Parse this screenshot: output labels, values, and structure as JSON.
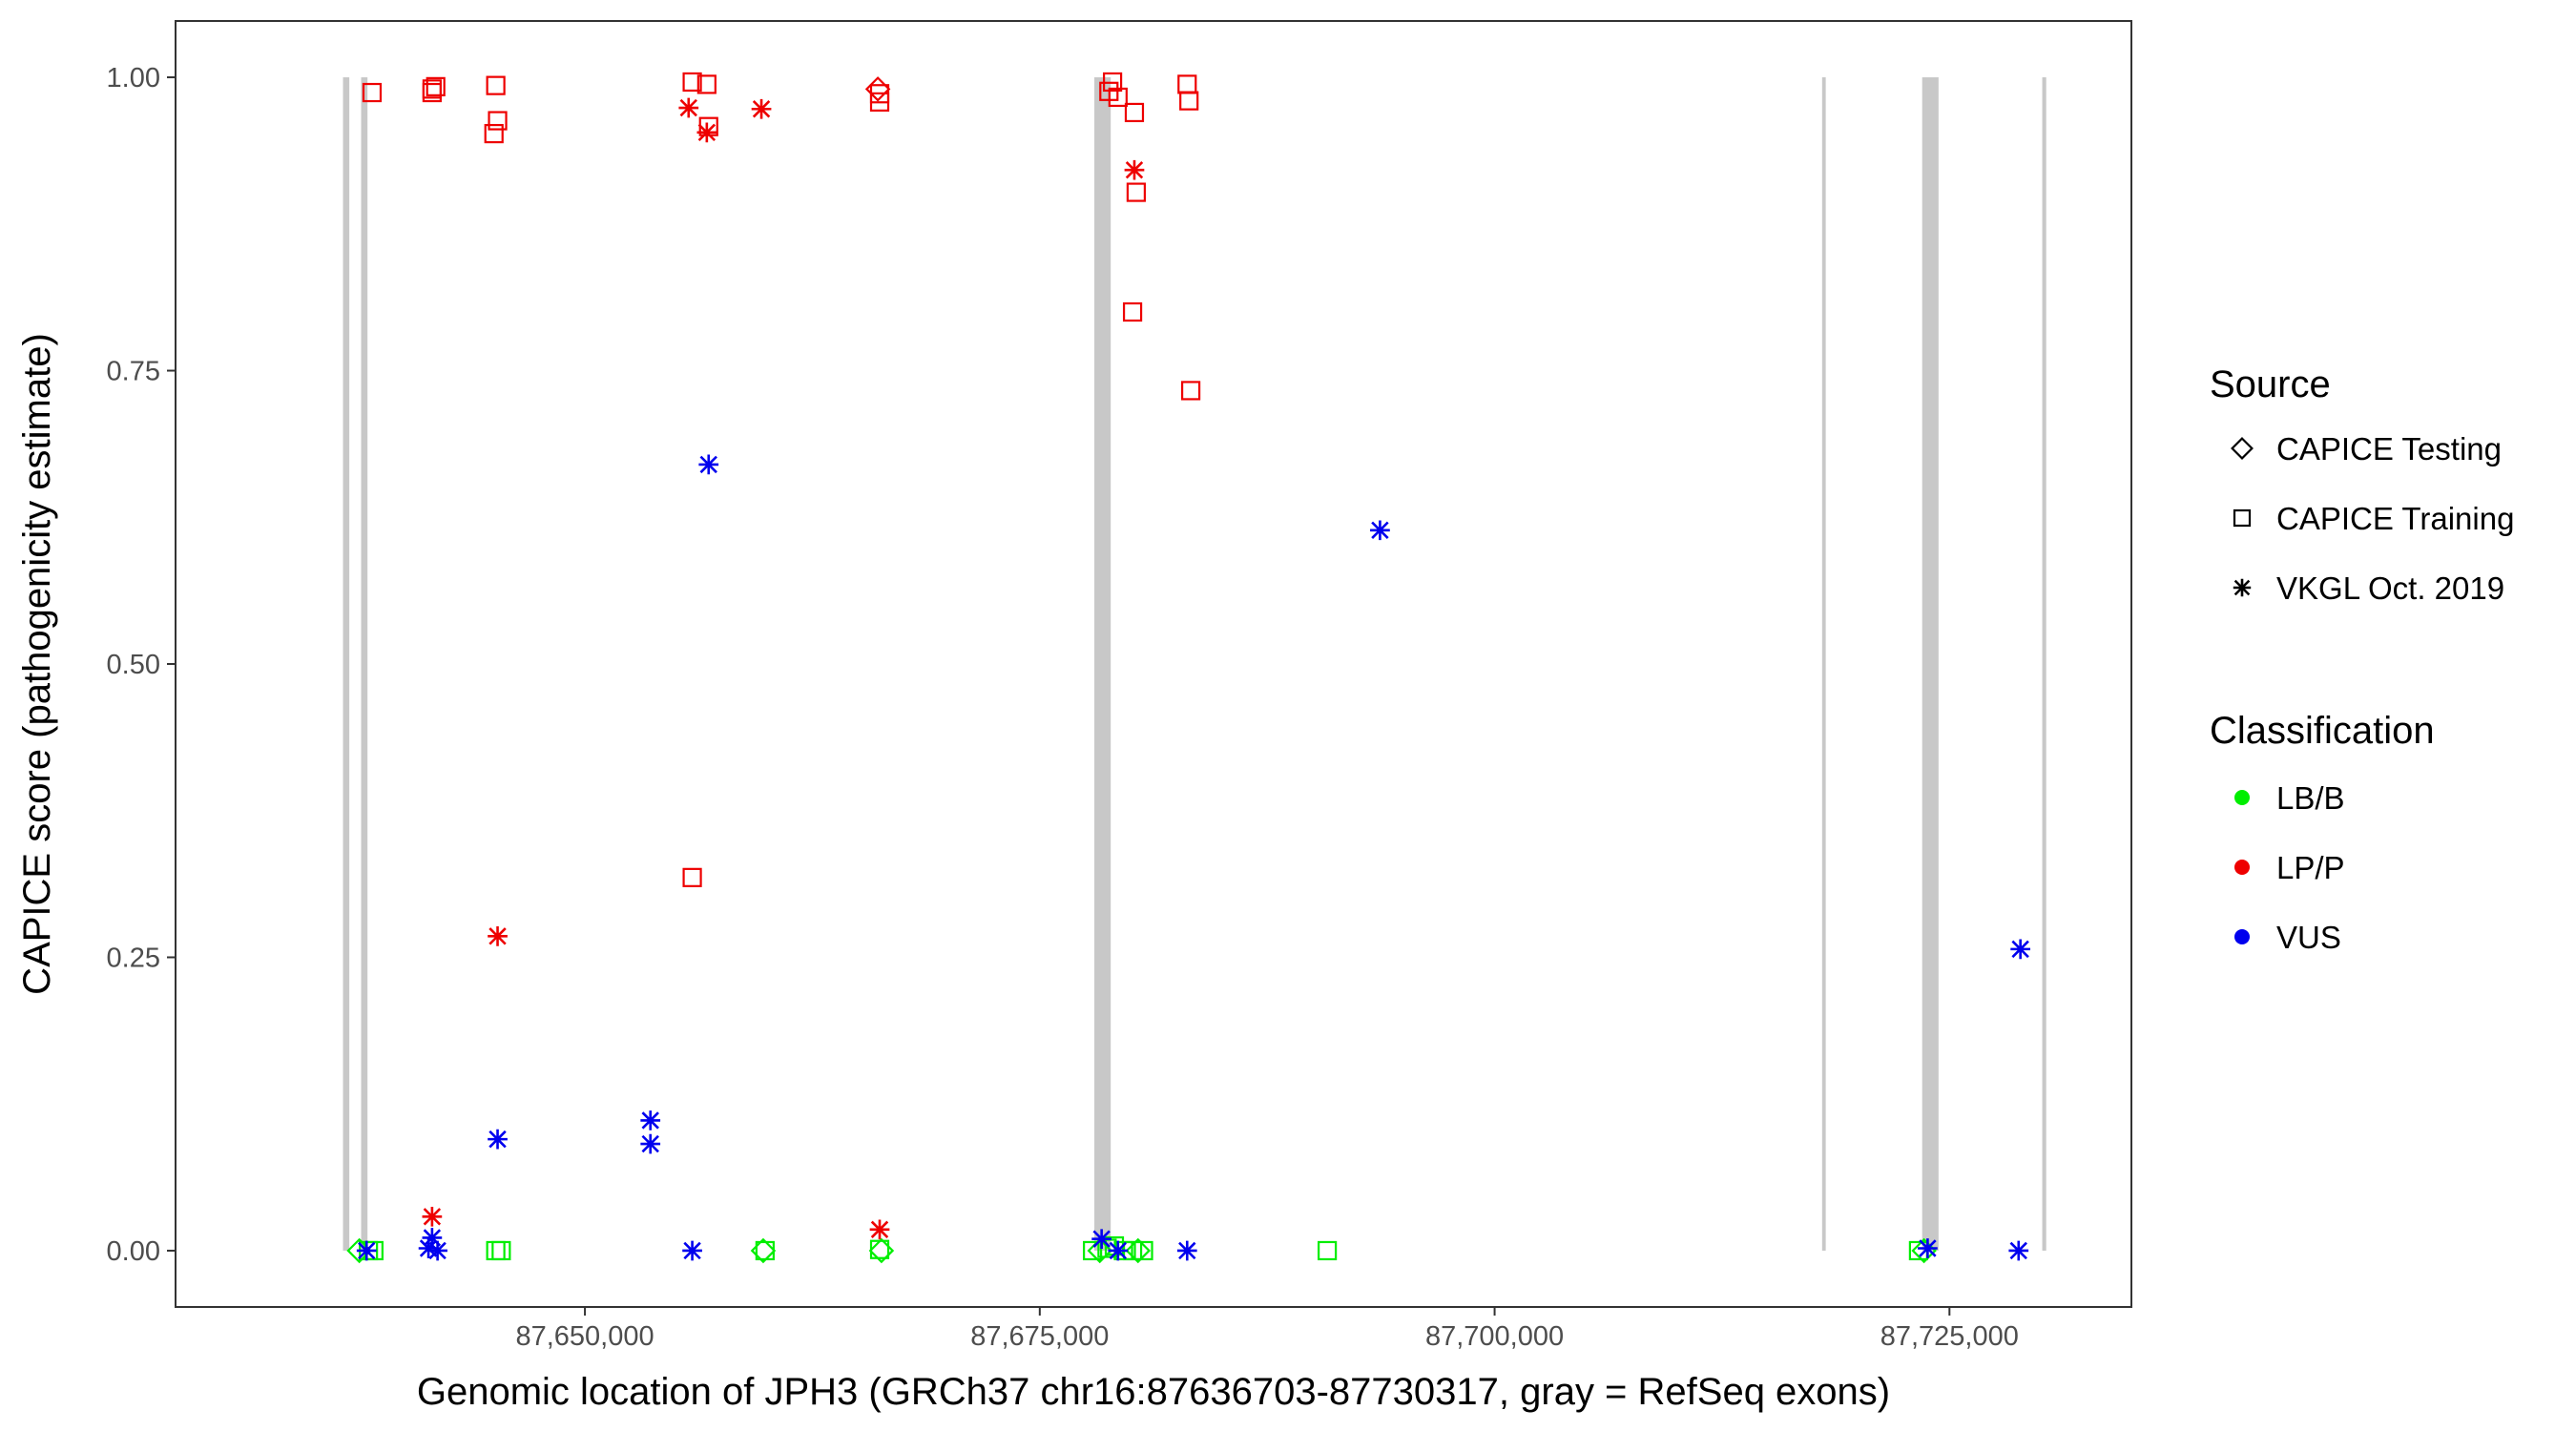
{
  "chart_data": {
    "type": "scatter",
    "xlabel": "Genomic location of JPH3 (GRCh37 chr16:87636703-87730317, gray = RefSeq exons)",
    "ylabel": "CAPICE score (pathogenicity estimate)",
    "xlim": [
      87627500,
      87735000
    ],
    "ylim": [
      -0.048,
      1.048
    ],
    "x_ticks": [
      87650000,
      87675000,
      87700000,
      87725000
    ],
    "x_tick_labels": [
      "87,650,000",
      "87,675,000",
      "87,700,000",
      "87,725,000"
    ],
    "y_ticks": [
      0,
      0.25,
      0.5,
      0.75,
      1.0
    ],
    "y_tick_labels": [
      "0.00",
      "0.25",
      "0.50",
      "0.75",
      "1.00"
    ],
    "grid": false,
    "colors": {
      "LB/B": "#00ee00",
      "LP/P": "#ee0000",
      "VUS": "#0000ee",
      "exon": "#c8c8c8"
    },
    "exons": [
      {
        "start": 87636703,
        "end": 87637050
      },
      {
        "start": 87637700,
        "end": 87638050
      },
      {
        "start": 87678000,
        "end": 87678900
      },
      {
        "start": 87718000,
        "end": 87718200
      },
      {
        "start": 87723500,
        "end": 87724400
      },
      {
        "start": 87730100,
        "end": 87730317
      }
    ],
    "legend": {
      "position": "right",
      "source_title": "Source",
      "source_entries": [
        {
          "label": "CAPICE Testing",
          "shape": "diamond"
        },
        {
          "label": "CAPICE Training",
          "shape": "square"
        },
        {
          "label": "VKGL Oct. 2019",
          "shape": "asterisk"
        }
      ],
      "classification_title": "Classification",
      "classification_entries": [
        {
          "label": "LB/B",
          "color": "#00ee00"
        },
        {
          "label": "LP/P",
          "color": "#ee0000"
        },
        {
          "label": "VUS",
          "color": "#0000ee"
        }
      ]
    },
    "points": [
      {
        "x": 87638300,
        "y": 0.987,
        "source": "CAPICE Training",
        "class": "LP/P"
      },
      {
        "x": 87641600,
        "y": 0.99,
        "source": "CAPICE Training",
        "class": "LP/P"
      },
      {
        "x": 87641800,
        "y": 0.992,
        "source": "CAPICE Training",
        "class": "LP/P"
      },
      {
        "x": 87641600,
        "y": 0.987,
        "source": "CAPICE Training",
        "class": "LP/P"
      },
      {
        "x": 87645100,
        "y": 0.993,
        "source": "CAPICE Training",
        "class": "LP/P"
      },
      {
        "x": 87645200,
        "y": 0.963,
        "source": "CAPICE Training",
        "class": "LP/P"
      },
      {
        "x": 87645000,
        "y": 0.952,
        "source": "CAPICE Training",
        "class": "LP/P"
      },
      {
        "x": 87655900,
        "y": 0.996,
        "source": "CAPICE Training",
        "class": "LP/P"
      },
      {
        "x": 87656700,
        "y": 0.994,
        "source": "CAPICE Training",
        "class": "LP/P"
      },
      {
        "x": 87656800,
        "y": 0.958,
        "source": "CAPICE Training",
        "class": "LP/P"
      },
      {
        "x": 87655700,
        "y": 0.974,
        "source": "VKGL Oct. 2019",
        "class": "LP/P"
      },
      {
        "x": 87656700,
        "y": 0.953,
        "source": "VKGL Oct. 2019",
        "class": "LP/P"
      },
      {
        "x": 87659700,
        "y": 0.973,
        "source": "VKGL Oct. 2019",
        "class": "LP/P"
      },
      {
        "x": 87666100,
        "y": 0.99,
        "source": "CAPICE Testing",
        "class": "LP/P"
      },
      {
        "x": 87666200,
        "y": 0.986,
        "source": "CAPICE Training",
        "class": "LP/P"
      },
      {
        "x": 87666200,
        "y": 0.979,
        "source": "CAPICE Training",
        "class": "LP/P"
      },
      {
        "x": 87679000,
        "y": 0.996,
        "source": "CAPICE Training",
        "class": "LP/P"
      },
      {
        "x": 87678800,
        "y": 0.988,
        "source": "CAPICE Training",
        "class": "LP/P"
      },
      {
        "x": 87679300,
        "y": 0.983,
        "source": "CAPICE Training",
        "class": "LP/P"
      },
      {
        "x": 87680200,
        "y": 0.97,
        "source": "CAPICE Training",
        "class": "LP/P"
      },
      {
        "x": 87680200,
        "y": 0.921,
        "source": "VKGL Oct. 2019",
        "class": "LP/P"
      },
      {
        "x": 87680300,
        "y": 0.902,
        "source": "CAPICE Training",
        "class": "LP/P"
      },
      {
        "x": 87680100,
        "y": 0.8,
        "source": "CAPICE Training",
        "class": "LP/P"
      },
      {
        "x": 87683100,
        "y": 0.994,
        "source": "CAPICE Training",
        "class": "LP/P"
      },
      {
        "x": 87683200,
        "y": 0.98,
        "source": "CAPICE Training",
        "class": "LP/P"
      },
      {
        "x": 87683300,
        "y": 0.733,
        "source": "CAPICE Training",
        "class": "LP/P"
      },
      {
        "x": 87645200,
        "y": 0.268,
        "source": "VKGL Oct. 2019",
        "class": "LP/P"
      },
      {
        "x": 87655900,
        "y": 0.318,
        "source": "CAPICE Training",
        "class": "LP/P"
      },
      {
        "x": 87641600,
        "y": 0.029,
        "source": "VKGL Oct. 2019",
        "class": "LP/P"
      },
      {
        "x": 87666200,
        "y": 0.018,
        "source": "VKGL Oct. 2019",
        "class": "LP/P"
      },
      {
        "x": 87656800,
        "y": 0.67,
        "source": "VKGL Oct. 2019",
        "class": "VUS"
      },
      {
        "x": 87693700,
        "y": 0.614,
        "source": "VKGL Oct. 2019",
        "class": "VUS"
      },
      {
        "x": 87728900,
        "y": 0.257,
        "source": "VKGL Oct. 2019",
        "class": "VUS"
      },
      {
        "x": 87653600,
        "y": 0.111,
        "source": "VKGL Oct. 2019",
        "class": "VUS"
      },
      {
        "x": 87653600,
        "y": 0.091,
        "source": "VKGL Oct. 2019",
        "class": "VUS"
      },
      {
        "x": 87645200,
        "y": 0.095,
        "source": "VKGL Oct. 2019",
        "class": "VUS"
      },
      {
        "x": 87641600,
        "y": 0.011,
        "source": "VKGL Oct. 2019",
        "class": "VUS"
      },
      {
        "x": 87641400,
        "y": 0.002,
        "source": "VKGL Oct. 2019",
        "class": "VUS"
      },
      {
        "x": 87641900,
        "y": 0.0,
        "source": "VKGL Oct. 2019",
        "class": "VUS"
      },
      {
        "x": 87638000,
        "y": 0.0,
        "source": "VKGL Oct. 2019",
        "class": "VUS"
      },
      {
        "x": 87655900,
        "y": 0.0,
        "source": "VKGL Oct. 2019",
        "class": "VUS"
      },
      {
        "x": 87678400,
        "y": 0.01,
        "source": "VKGL Oct. 2019",
        "class": "VUS"
      },
      {
        "x": 87679300,
        "y": 0.0,
        "source": "VKGL Oct. 2019",
        "class": "VUS"
      },
      {
        "x": 87683100,
        "y": 0.0,
        "source": "VKGL Oct. 2019",
        "class": "VUS"
      },
      {
        "x": 87723800,
        "y": 0.002,
        "source": "VKGL Oct. 2019",
        "class": "VUS"
      },
      {
        "x": 87728800,
        "y": 0.0,
        "source": "VKGL Oct. 2019",
        "class": "VUS"
      },
      {
        "x": 87637600,
        "y": 0.0,
        "source": "CAPICE Testing",
        "class": "LB/B"
      },
      {
        "x": 87638100,
        "y": 0.0,
        "source": "CAPICE Training",
        "class": "LB/B"
      },
      {
        "x": 87638400,
        "y": 0.0,
        "source": "CAPICE Training",
        "class": "LB/B"
      },
      {
        "x": 87645100,
        "y": 0.0,
        "source": "CAPICE Training",
        "class": "LB/B"
      },
      {
        "x": 87645400,
        "y": 0.0,
        "source": "CAPICE Training",
        "class": "LB/B"
      },
      {
        "x": 87659800,
        "y": 0.0,
        "source": "CAPICE Testing",
        "class": "LB/B"
      },
      {
        "x": 87659900,
        "y": 0.0,
        "source": "CAPICE Training",
        "class": "LB/B"
      },
      {
        "x": 87666200,
        "y": 0.001,
        "source": "CAPICE Training",
        "class": "LB/B"
      },
      {
        "x": 87666300,
        "y": 0.0,
        "source": "CAPICE Testing",
        "class": "LB/B"
      },
      {
        "x": 87677900,
        "y": 0.0,
        "source": "CAPICE Training",
        "class": "LB/B"
      },
      {
        "x": 87678300,
        "y": 0.0,
        "source": "CAPICE Testing",
        "class": "LB/B"
      },
      {
        "x": 87678700,
        "y": 0.002,
        "source": "CAPICE Training",
        "class": "LB/B"
      },
      {
        "x": 87679100,
        "y": 0.004,
        "source": "CAPICE Training",
        "class": "LB/B"
      },
      {
        "x": 87679600,
        "y": 0.0,
        "source": "CAPICE Training",
        "class": "LB/B"
      },
      {
        "x": 87680100,
        "y": 0.0,
        "source": "CAPICE Training",
        "class": "LB/B"
      },
      {
        "x": 87680400,
        "y": 0.0,
        "source": "CAPICE Testing",
        "class": "LB/B"
      },
      {
        "x": 87680700,
        "y": 0.0,
        "source": "CAPICE Training",
        "class": "LB/B"
      },
      {
        "x": 87690800,
        "y": 0.0,
        "source": "CAPICE Training",
        "class": "LB/B"
      },
      {
        "x": 87723300,
        "y": 0.0,
        "source": "CAPICE Training",
        "class": "LB/B"
      },
      {
        "x": 87723600,
        "y": 0.0,
        "source": "CAPICE Testing",
        "class": "LB/B"
      }
    ]
  }
}
